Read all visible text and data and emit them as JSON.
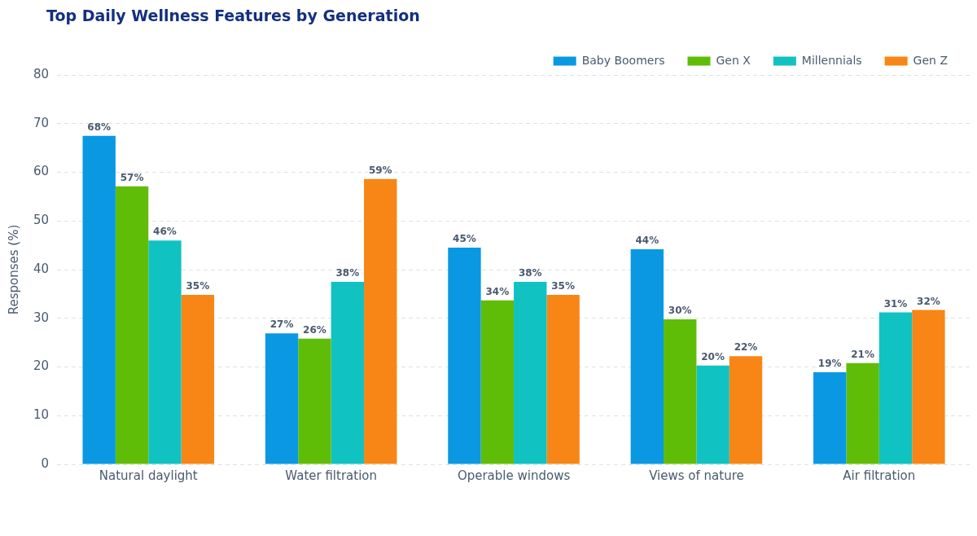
{
  "chart_data": {
    "type": "bar",
    "title": "Top Daily Wellness Features by Generation",
    "ylabel": "Responses (%)",
    "categories": [
      "Natural daylight",
      "Water filtration",
      "Operable windows",
      "Views of nature",
      "Air filtration"
    ],
    "series": [
      {
        "name": "Baby Boomers",
        "color": "#0a98e2",
        "values": [
          67.5,
          26.9,
          44.5,
          44.2,
          18.9
        ],
        "value_labels": [
          "68%",
          "27%",
          "45%",
          "44%",
          "19%"
        ]
      },
      {
        "name": "Gen X",
        "color": "#5fbd08",
        "values": [
          57.1,
          25.8,
          33.7,
          29.8,
          20.8
        ],
        "value_labels": [
          "57%",
          "26%",
          "34%",
          "30%",
          "21%"
        ]
      },
      {
        "name": "Millennials",
        "color": "#10c2c2",
        "values": [
          46.0,
          37.5,
          37.5,
          20.3,
          31.2
        ],
        "value_labels": [
          "46%",
          "38%",
          "38%",
          "20%",
          "31%"
        ]
      },
      {
        "name": "Gen Z",
        "color": "#f78616",
        "values": [
          34.8,
          58.6,
          34.8,
          22.2,
          31.7
        ],
        "value_labels": [
          "35%",
          "59%",
          "35%",
          "22%",
          "32%"
        ]
      }
    ],
    "ylim": [
      0,
      80
    ],
    "yticks": [
      0,
      10,
      20,
      30,
      40,
      50,
      60,
      70,
      80
    ],
    "grid": "y",
    "legend": "top right"
  }
}
